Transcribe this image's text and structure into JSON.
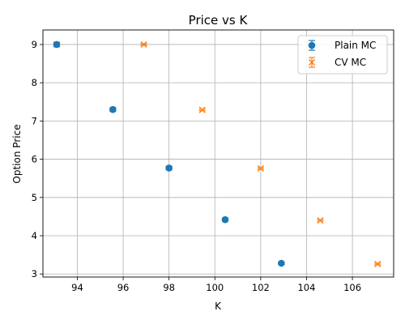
{
  "chart_data": {
    "type": "scatter",
    "title": "Price vs K",
    "xlabel": "K",
    "ylabel": "Option Price",
    "xlim": [
      92.5,
      107.8
    ],
    "ylim": [
      2.92,
      9.38
    ],
    "xticks": [
      "94",
      "96",
      "98",
      "100",
      "102",
      "104",
      "106"
    ],
    "yticks": [
      "3",
      "4",
      "5",
      "6",
      "7",
      "8",
      "9"
    ],
    "grid": true,
    "legend_position": "top-right",
    "series": [
      {
        "name": "Plain MC",
        "marker": "circle",
        "color": "#1f77b4",
        "x": [
          93.1,
          95.55,
          98.0,
          100.45,
          102.9
        ],
        "y": [
          9.0,
          7.3,
          5.77,
          4.42,
          3.28
        ],
        "yerr": [
          0.06,
          0.05,
          0.05,
          0.04,
          0.03
        ]
      },
      {
        "name": "CV MC",
        "marker": "x",
        "color": "#ff7f0e",
        "x": [
          96.9,
          99.45,
          102.0,
          104.6,
          107.1
        ],
        "y": [
          9.0,
          7.29,
          5.76,
          4.4,
          3.26
        ],
        "yerr": [
          0.02,
          0.02,
          0.02,
          0.02,
          0.02
        ]
      }
    ]
  }
}
